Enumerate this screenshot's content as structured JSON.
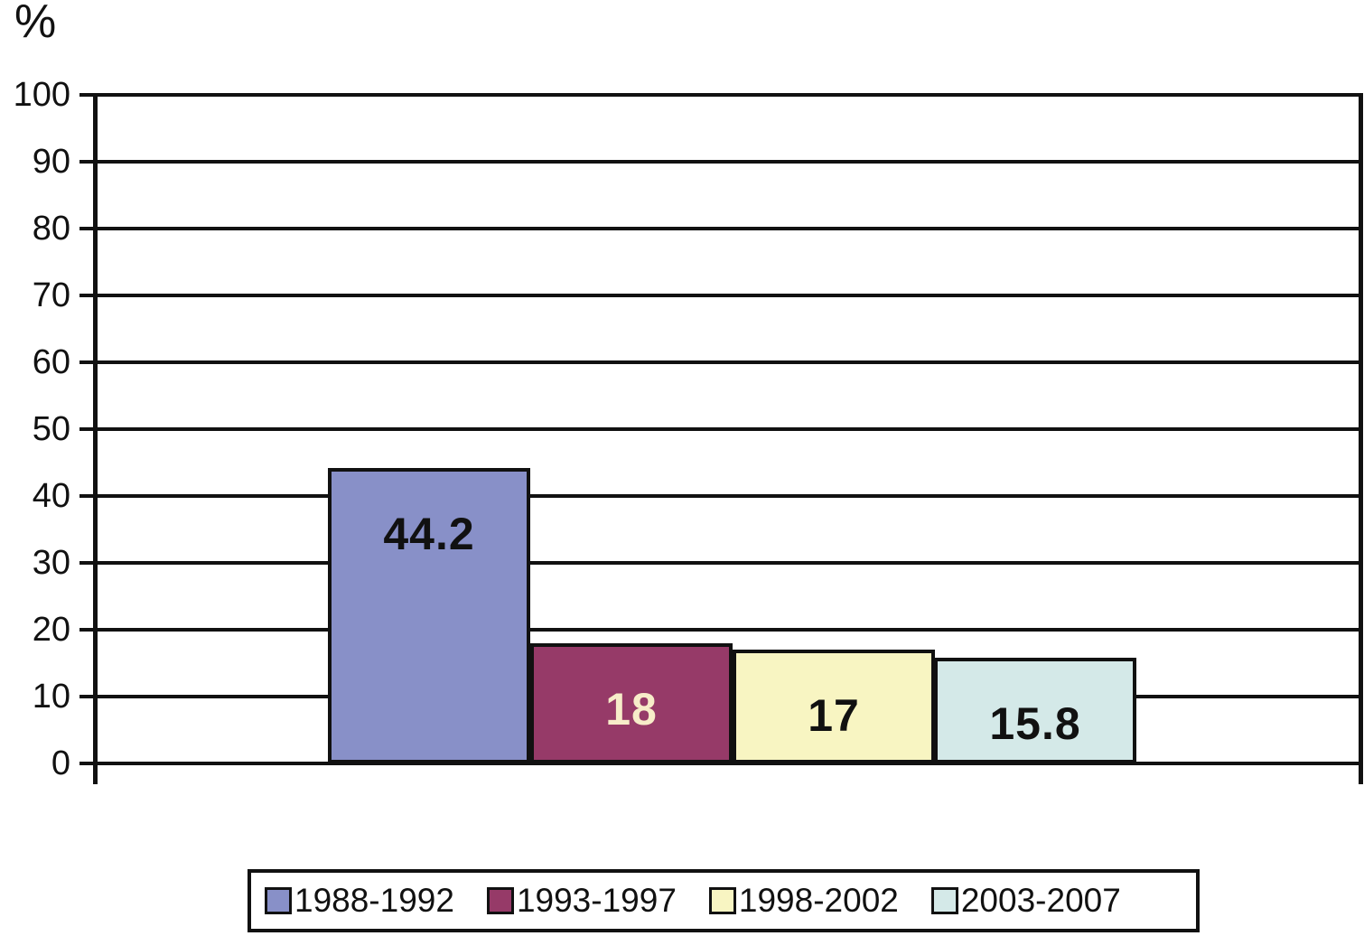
{
  "chart_data": {
    "type": "bar",
    "ylabel": "%",
    "ylim": [
      0,
      100
    ],
    "ytick_interval": 10,
    "yticks": [
      100,
      90,
      80,
      70,
      60,
      50,
      40,
      30,
      20,
      10,
      0
    ],
    "grid": true,
    "legend_position": "bottom",
    "axis_color": "#111111",
    "categories": [
      "1988-1992",
      "1993-1997",
      "1998-2002",
      "2003-2007"
    ],
    "series": [
      {
        "name": "1988-1992",
        "value": 44.2,
        "label": "44.2",
        "color": "#8890c8",
        "label_color": "#111111"
      },
      {
        "name": "1993-1997",
        "value": 18,
        "label": "18",
        "color": "#963a68",
        "label_color": "#f7ecc9"
      },
      {
        "name": "1998-2002",
        "value": 17,
        "label": "17",
        "color": "#f8f5c2",
        "label_color": "#111111"
      },
      {
        "name": "2003-2007",
        "value": 15.8,
        "label": "15.8",
        "color": "#d4e9e8",
        "label_color": "#111111"
      }
    ]
  }
}
